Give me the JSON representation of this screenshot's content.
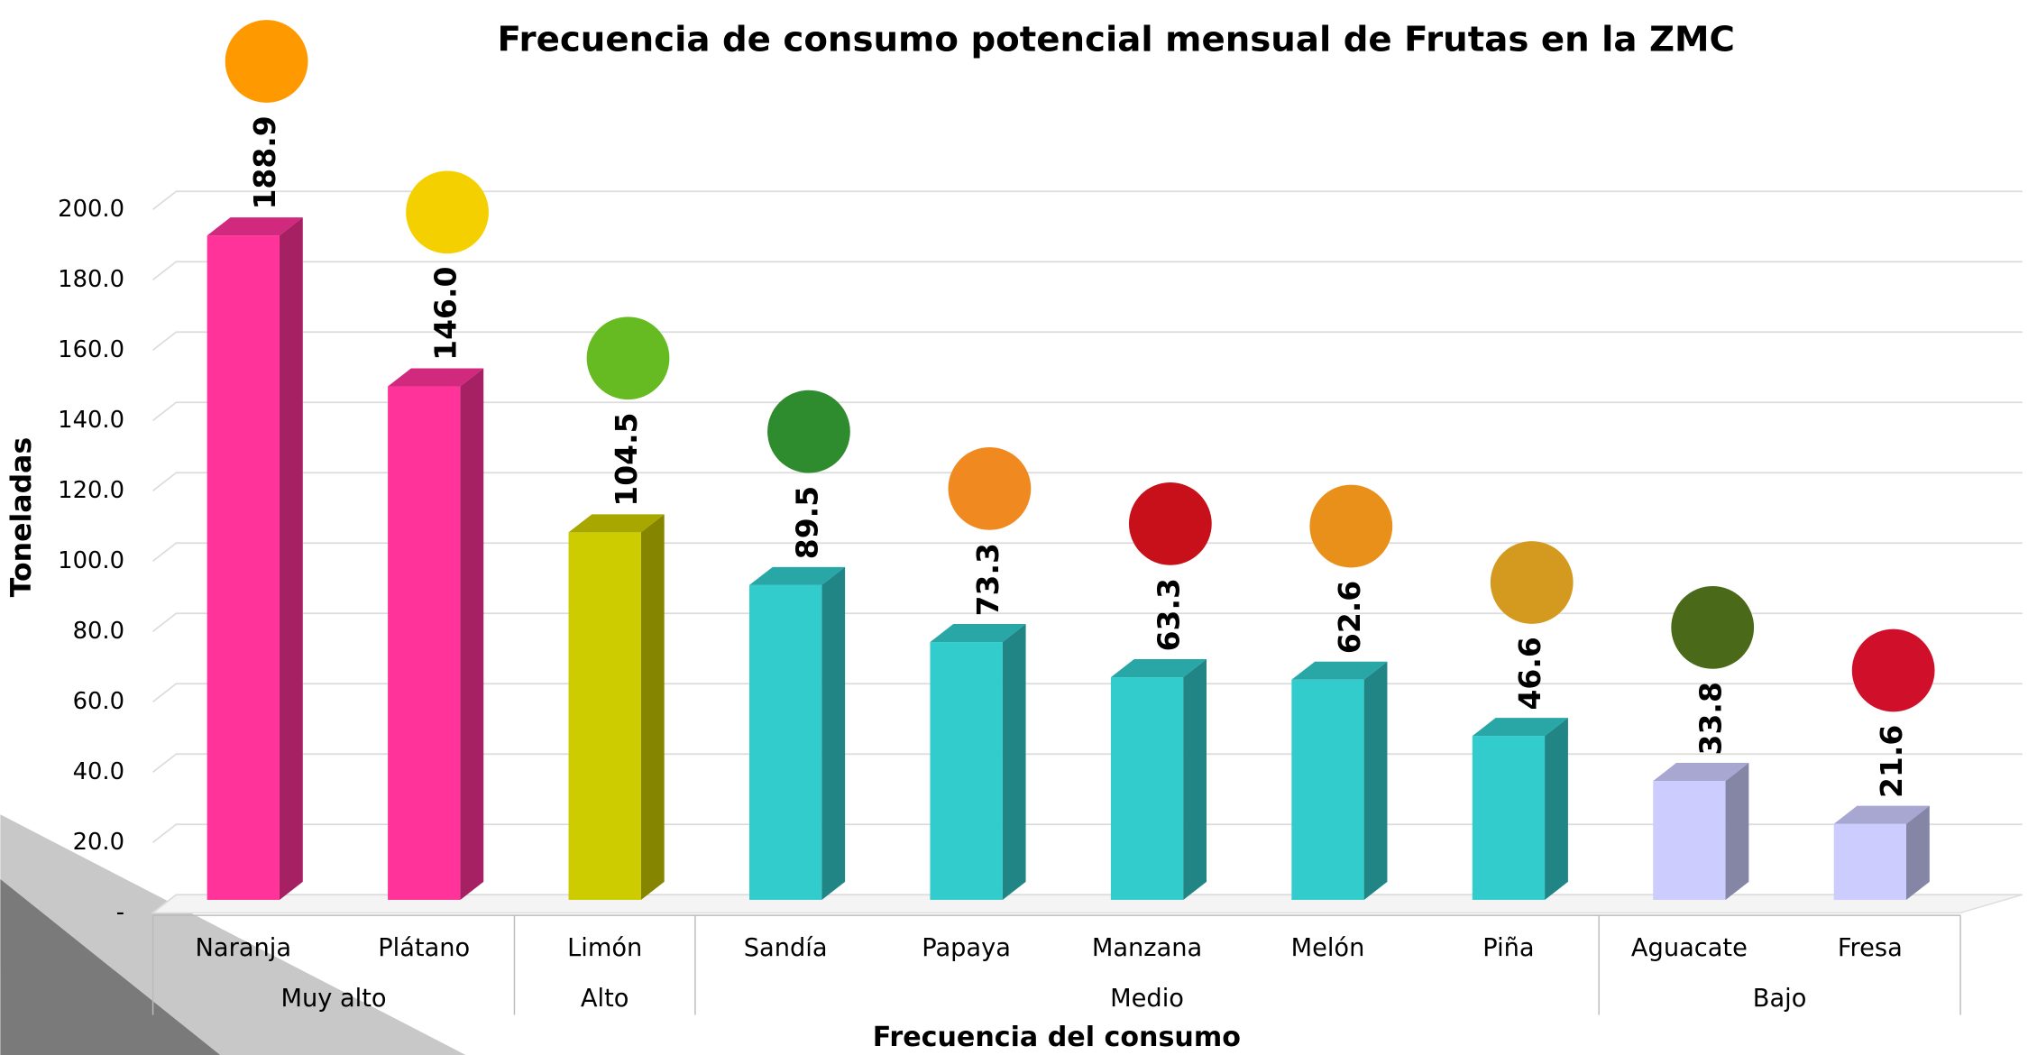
{
  "chart_data": {
    "type": "bar3d",
    "title": "Frecuencia de consumo potencial mensual de Frutas en la ZMC",
    "x_label": "Frecuencia  del consumo",
    "y_label": "Toneladas",
    "categories": [
      "Naranja",
      "Plátano",
      "Limón",
      "Sandía",
      "Papaya",
      "Manzana",
      "Melón",
      "Piña",
      "Aguacate",
      "Fresa"
    ],
    "values": [
      188.9,
      146.0,
      104.5,
      89.5,
      73.3,
      63.3,
      62.6,
      46.6,
      33.8,
      21.6
    ],
    "value_labels": [
      "188.9",
      "146.0",
      "104.5",
      "89.5",
      "73.3",
      "63.3",
      "62.6",
      "46.6",
      "33.8",
      "21.6"
    ],
    "colors": [
      "#ff3399",
      "#ff3399",
      "#cccc00",
      "#33cccc",
      "#33cccc",
      "#33cccc",
      "#33cccc",
      "#33cccc",
      "#ccccff",
      "#ccccff"
    ],
    "groups": [
      {
        "name": "Muy alto",
        "members": [
          "Naranja",
          "Plátano"
        ]
      },
      {
        "name": "Alto",
        "members": [
          "Limón"
        ]
      },
      {
        "name": "Medio",
        "members": [
          "Sandía",
          "Papaya",
          "Manzana",
          "Melón",
          "Piña"
        ]
      },
      {
        "name": "Bajo",
        "members": [
          "Aguacate",
          "Fresa"
        ]
      }
    ],
    "ylim": [
      0,
      200
    ],
    "yticks": [
      {
        "value": 0,
        "label": "-"
      },
      {
        "value": 20,
        "label": "20.0"
      },
      {
        "value": 40,
        "label": "40.0"
      },
      {
        "value": 60,
        "label": "60.0"
      },
      {
        "value": 80,
        "label": "80.0"
      },
      {
        "value": 100,
        "label": "100.0"
      },
      {
        "value": 120,
        "label": "120.0"
      },
      {
        "value": 140,
        "label": "140.0"
      },
      {
        "value": 160,
        "label": "160.0"
      },
      {
        "value": 180,
        "label": "180.0"
      },
      {
        "value": 200,
        "label": "200.0"
      }
    ],
    "grid": true
  }
}
